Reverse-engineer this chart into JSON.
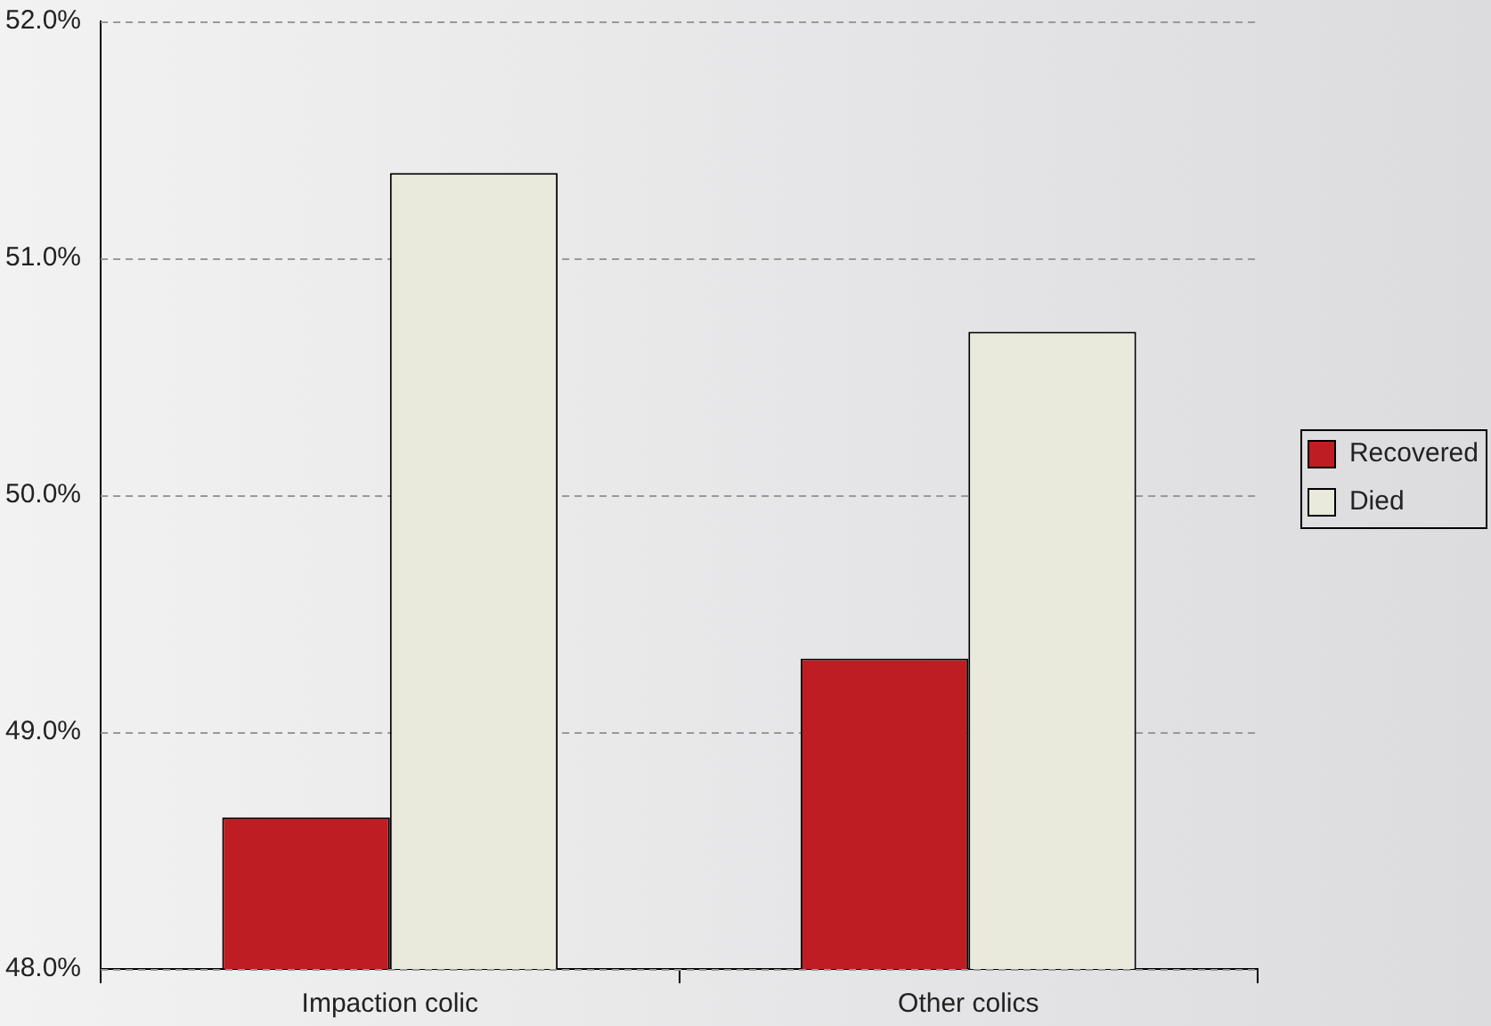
{
  "chart_data": {
    "type": "bar",
    "categories": [
      "Impaction colic",
      "Other colics"
    ],
    "series": [
      {
        "name": "Recovered",
        "color": "#be1e23",
        "values": [
          48.64,
          49.31
        ]
      },
      {
        "name": "Died",
        "color": "#e9e9dc",
        "values": [
          51.36,
          50.69
        ]
      }
    ],
    "ylim": [
      48,
      52
    ],
    "yticks": [
      {
        "value": 48,
        "label": "48.0%"
      },
      {
        "value": 49,
        "label": "49.0%"
      },
      {
        "value": 50,
        "label": "50.0%"
      },
      {
        "value": 51,
        "label": "51.0%"
      },
      {
        "value": 52,
        "label": "52.0%"
      }
    ],
    "grid": "y",
    "legend": "right"
  }
}
